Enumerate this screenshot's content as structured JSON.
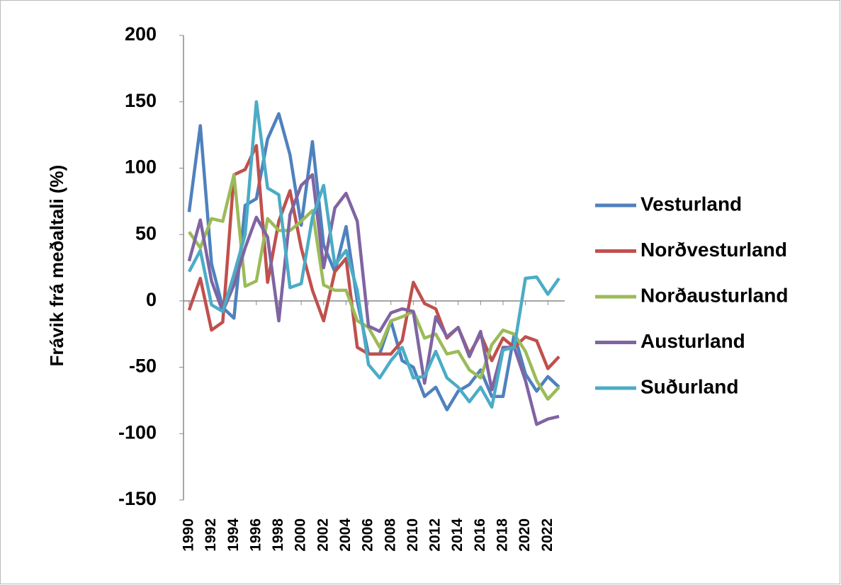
{
  "chart_data": {
    "type": "line",
    "y_label": "Frávik frá meðaltali (%)",
    "x": [
      1990,
      1991,
      1992,
      1993,
      1994,
      1995,
      1996,
      1997,
      1998,
      1999,
      2000,
      2001,
      2002,
      2003,
      2004,
      2005,
      2006,
      2007,
      2008,
      2009,
      2010,
      2011,
      2012,
      2013,
      2014,
      2015,
      2016,
      2017,
      2018,
      2019,
      2020,
      2021,
      2022,
      2023
    ],
    "xlim": [
      1989.5,
      2023.5
    ],
    "xticks": [
      1990,
      1992,
      1994,
      1996,
      1998,
      2000,
      2002,
      2004,
      2006,
      2008,
      2010,
      2012,
      2014,
      2016,
      2018,
      2020,
      2022
    ],
    "ylim": [
      -150,
      200
    ],
    "yticks": [
      -150,
      -100,
      -50,
      0,
      50,
      100,
      150,
      200
    ],
    "legend": "right",
    "series": [
      {
        "name": "Vesturland",
        "color": "#4f81bd",
        "values": [
          67,
          132,
          28,
          -5,
          -13,
          72,
          77,
          122,
          141,
          110,
          57,
          120,
          42,
          22,
          56,
          0,
          -40,
          -40,
          -15,
          -45,
          -50,
          -72,
          -65,
          -82,
          -68,
          -63,
          -52,
          -72,
          -72,
          -25,
          -55,
          -68,
          -57,
          -65
        ]
      },
      {
        "name": "Norðvesturland",
        "color": "#c0504d",
        "values": [
          -7,
          17,
          -22,
          -16,
          95,
          99,
          117,
          14,
          60,
          83,
          40,
          8,
          -15,
          22,
          32,
          -35,
          -40,
          -40,
          -40,
          -30,
          14,
          -2,
          -6,
          -28,
          -20,
          -40,
          -25,
          -45,
          -28,
          -35,
          -27,
          -30,
          -51,
          -42
        ]
      },
      {
        "name": "Norðausturland",
        "color": "#9bbb59",
        "values": [
          52,
          40,
          62,
          60,
          95,
          11,
          15,
          62,
          53,
          53,
          60,
          68,
          12,
          8,
          8,
          -15,
          -20,
          -35,
          -15,
          -12,
          -8,
          -28,
          -25,
          -40,
          -38,
          -52,
          -58,
          -33,
          -22,
          -25,
          -38,
          -60,
          -74,
          -65
        ]
      },
      {
        "name": "Austurland",
        "color": "#8064a2",
        "values": [
          30,
          61,
          15,
          -8,
          12,
          40,
          63,
          48,
          -15,
          65,
          87,
          95,
          25,
          70,
          81,
          60,
          -19,
          -23,
          -9,
          -6,
          -8,
          -62,
          -12,
          -27,
          -20,
          -42,
          -23,
          -67,
          -35,
          -35,
          -60,
          -93,
          -89,
          -87
        ]
      },
      {
        "name": "Suðurland",
        "color": "#4bacc6",
        "values": [
          22,
          38,
          -3,
          -8,
          20,
          50,
          150,
          85,
          80,
          10,
          13,
          63,
          87,
          27,
          38,
          8,
          -48,
          -58,
          -45,
          -35,
          -58,
          -57,
          -38,
          -58,
          -65,
          -76,
          -65,
          -80,
          -37,
          -35,
          17,
          18,
          5,
          17
        ]
      }
    ]
  }
}
